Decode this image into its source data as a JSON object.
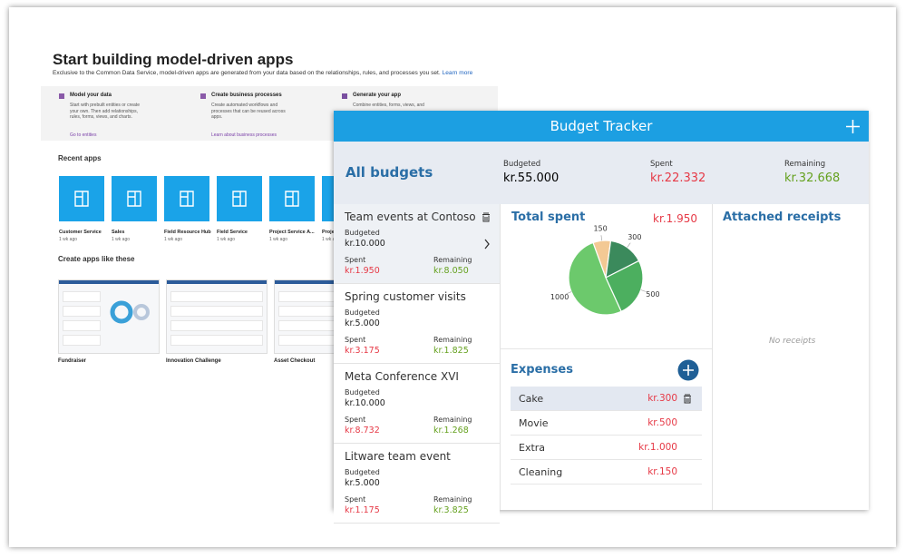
{
  "background_page": {
    "title": "Start building model-driven apps",
    "subtitle": "Exclusive to the Common Data Service, model-driven apps are generated from your data based on the relationships, rules, and processes you set.",
    "learn_more": "Learn more",
    "steps": [
      {
        "title": "Model your data",
        "description": "Start with prebuilt entities or create your own. Then add relationships, rules, forms, views, and charts.",
        "link": "Go to entities"
      },
      {
        "title": "Create business processes",
        "description": "Create automated workflows and processes that can be reused across apps.",
        "link": "Learn about business processes"
      },
      {
        "title": "Generate your app",
        "description": "Combine entities, forms, views, and",
        "link": ""
      }
    ],
    "recent_apps_heading": "Recent apps",
    "recent_apps": [
      {
        "name": "Customer Service",
        "age": "1 wk ago"
      },
      {
        "name": "Sales",
        "age": "1 wk ago"
      },
      {
        "name": "Field Resource Hub",
        "age": "1 wk ago"
      },
      {
        "name": "Field Service",
        "age": "1 wk ago"
      },
      {
        "name": "Project Service A...",
        "age": "1 wk ago"
      },
      {
        "name": "Proje...",
        "age": "1 wk ago"
      }
    ],
    "templates_heading": "Create apps like these",
    "templates": [
      "Fundraiser",
      "Innovation Challenge",
      "Asset Checkout"
    ]
  },
  "budget_tracker": {
    "title": "Budget Tracker",
    "labels": {
      "budgeted": "Budgeted",
      "spent": "Spent",
      "remaining": "Remaining"
    },
    "summary": {
      "heading": "All budgets",
      "budgeted": "kr.55.000",
      "spent": "kr.22.332",
      "remaining": "kr.32.668"
    },
    "budgets": [
      {
        "name": "Team events at Contoso",
        "budgeted": "kr.10.000",
        "spent": "kr.1.950",
        "remaining": "kr.8.050"
      },
      {
        "name": "Spring customer visits",
        "budgeted": "kr.5.000",
        "spent": "kr.3.175",
        "remaining": "kr.1.825"
      },
      {
        "name": "Meta Conference XVI",
        "budgeted": "kr.10.000",
        "spent": "kr.8.732",
        "remaining": "kr.1.268"
      },
      {
        "name": "Litware team event",
        "budgeted": "kr.5.000",
        "spent": "kr.1.175",
        "remaining": "kr.3.825"
      }
    ],
    "total_spent_label": "Total spent",
    "total_spent": "kr.1.950",
    "pie": {
      "type": "pie",
      "values": [
        150,
        300,
        500,
        1000
      ],
      "colors": [
        "#f3c994",
        "#3b8a5c",
        "#4caf5f",
        "#6cc96c"
      ]
    },
    "expenses_heading": "Expenses",
    "expenses": [
      {
        "name": "Cake",
        "amount": "kr.300"
      },
      {
        "name": "Movie",
        "amount": "kr.500"
      },
      {
        "name": "Extra",
        "amount": "kr.1.000"
      },
      {
        "name": "Cleaning",
        "amount": "kr.150"
      }
    ],
    "receipts_heading": "Attached receipts",
    "no_receipts": "No receipts"
  }
}
